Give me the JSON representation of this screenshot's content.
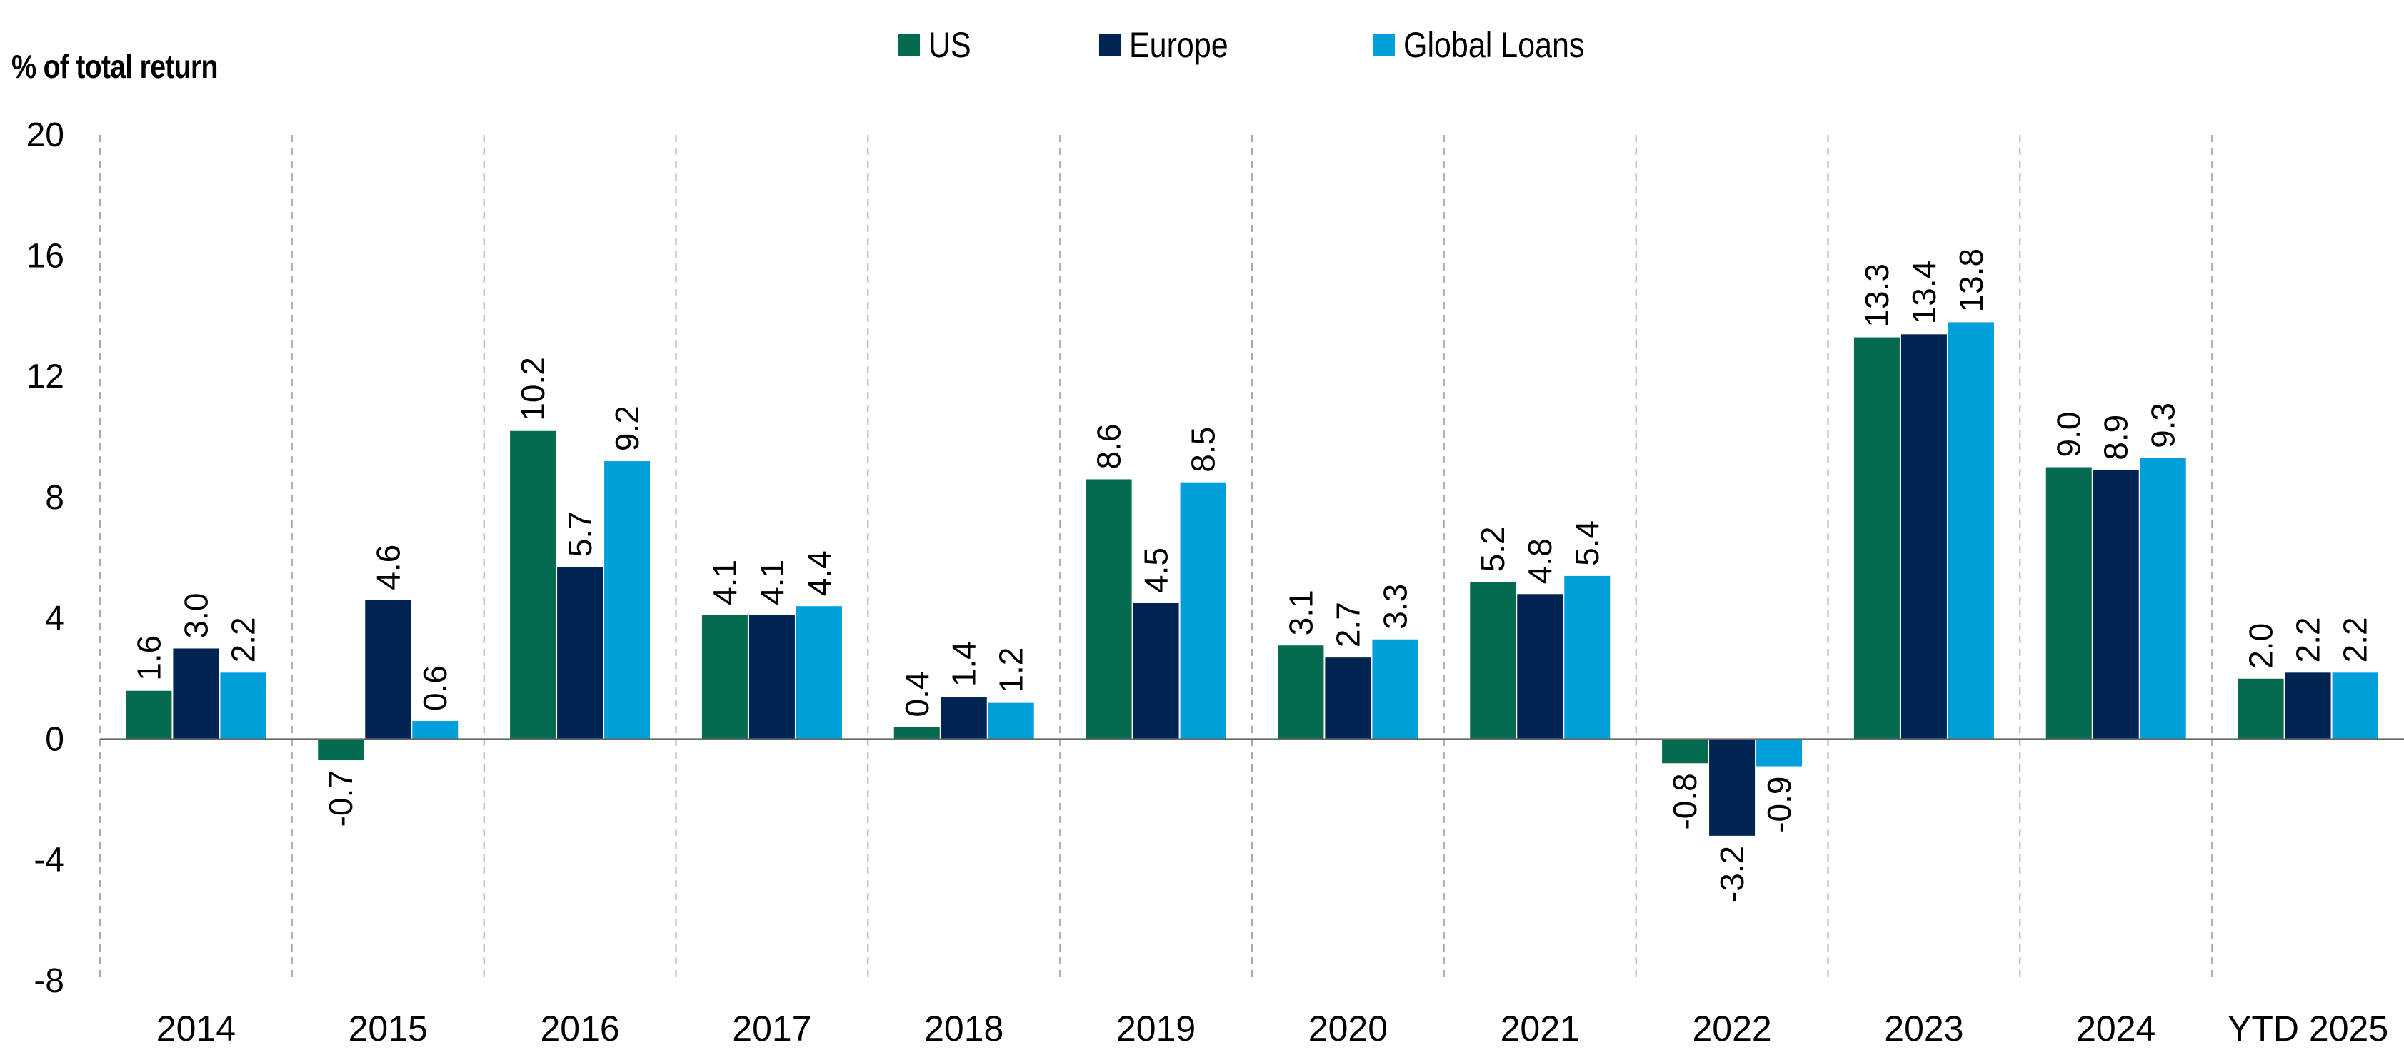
{
  "chart_data": {
    "type": "bar",
    "title": "",
    "ylabel": "% of total return",
    "xlabel": "",
    "ylim": [
      -8,
      20
    ],
    "yticks": [
      20,
      16,
      12,
      8,
      4,
      0,
      -4,
      -8
    ],
    "categories": [
      "2014",
      "2015",
      "2016",
      "2017",
      "2018",
      "2019",
      "2020",
      "2021",
      "2022",
      "2023",
      "2024",
      "YTD 2025"
    ],
    "series": [
      {
        "name": "US",
        "color": "#046a50",
        "values": [
          1.6,
          -0.7,
          10.2,
          4.1,
          0.4,
          8.6,
          3.1,
          5.2,
          -0.8,
          13.3,
          9.0,
          2.0
        ],
        "labels": [
          "1.6",
          "-0.7",
          "10.2",
          "4.1",
          "0.4",
          "8.6",
          "3.1",
          "5.2",
          "-0.8",
          "13.3",
          "9.0",
          "2.0"
        ]
      },
      {
        "name": "Europe",
        "color": "#022452",
        "values": [
          3.0,
          4.6,
          5.7,
          4.1,
          1.4,
          4.5,
          2.7,
          4.8,
          -3.2,
          13.4,
          8.9,
          2.2
        ],
        "labels": [
          "3.0",
          "4.6",
          "5.7",
          "4.1",
          "1.4",
          "4.5",
          "2.7",
          "4.8",
          "-3.2",
          "13.4",
          "8.9",
          "2.2"
        ]
      },
      {
        "name": "Global Loans",
        "color": "#009fdb",
        "values": [
          2.2,
          0.6,
          9.2,
          4.4,
          1.2,
          8.5,
          3.3,
          5.4,
          -0.9,
          13.8,
          9.3,
          2.2
        ],
        "labels": [
          "2.2",
          "0.6",
          "9.2",
          "4.4",
          "1.2",
          "8.5",
          "3.3",
          "5.4",
          "-0.9",
          "13.8",
          "9.3",
          "2.2"
        ]
      }
    ],
    "grid": "vertical dashed separators between categories",
    "legend": "top-center",
    "data_labels": "rotated vertical above/below bars"
  }
}
